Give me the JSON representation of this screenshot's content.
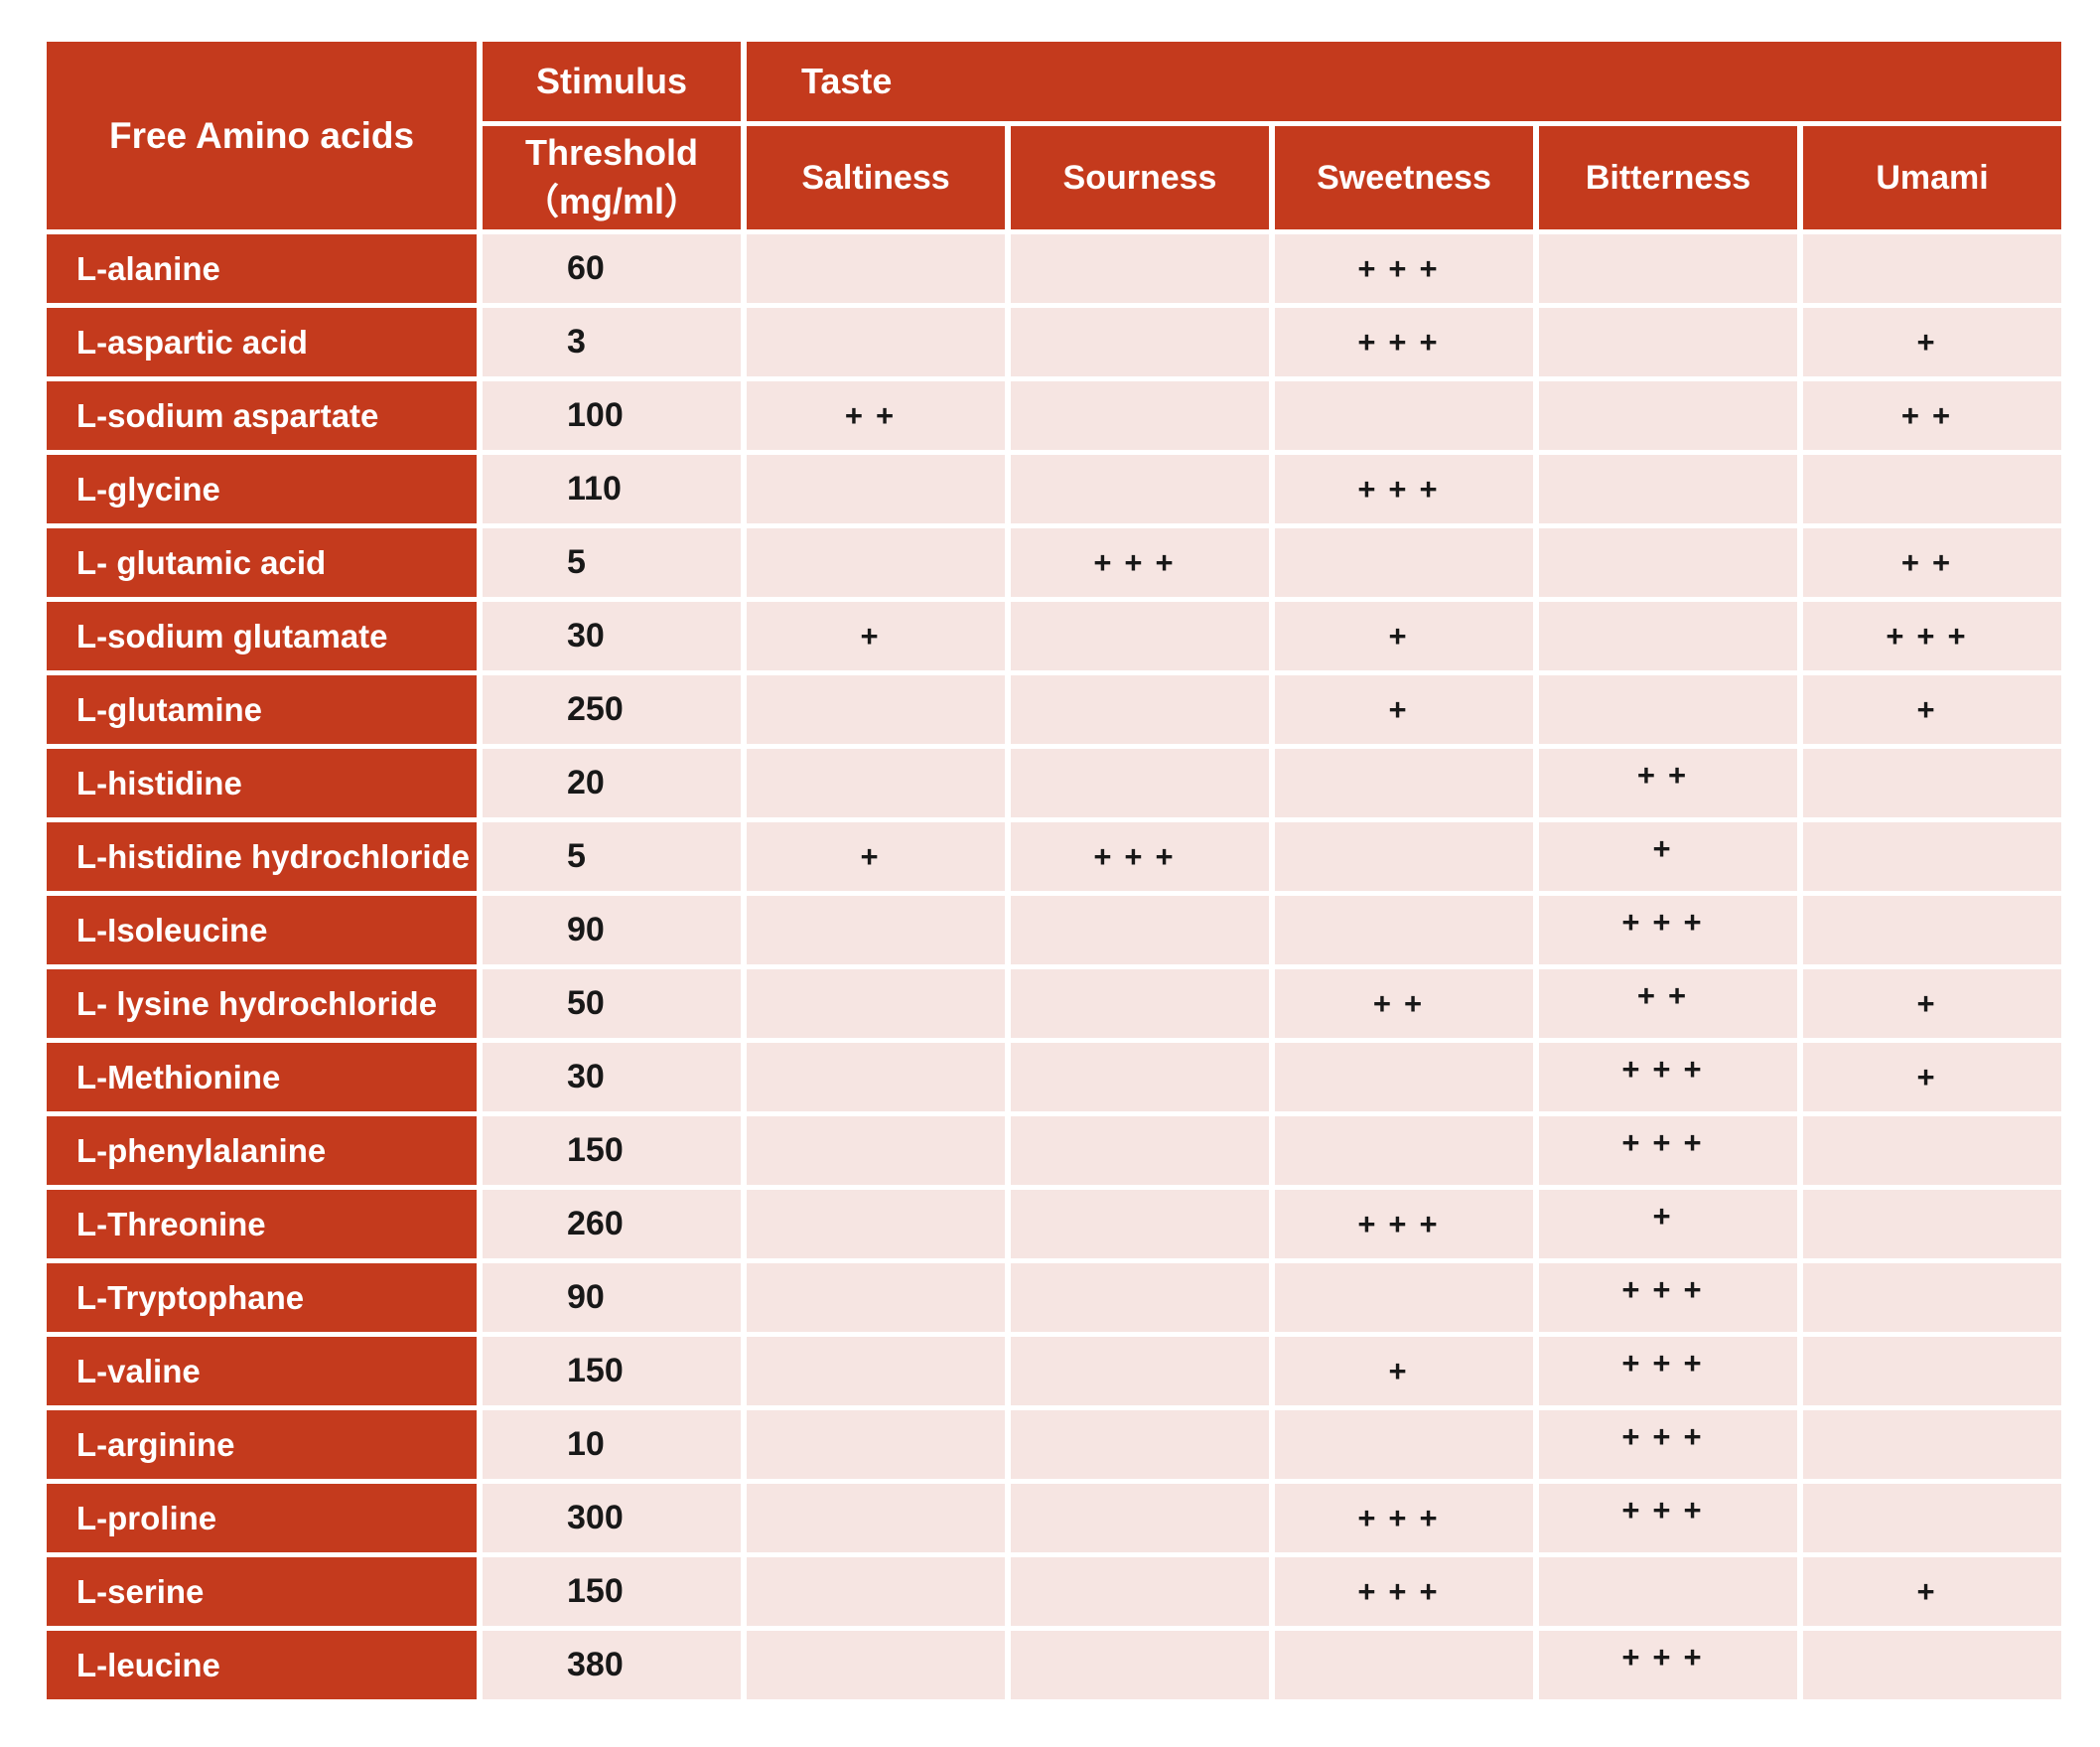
{
  "colors": {
    "header_red": "#C43A1D",
    "cell_pink": "#F6E5E2",
    "grid_white": "#FFFFFF",
    "text_dark": "#181818",
    "text_light": "#FFFFFF"
  },
  "table": {
    "header": {
      "amino_label": "Free Amino acids",
      "stimulus_label": "Stimulus",
      "threshold_line1": "Threshold",
      "threshold_line2": "（mg/ml）",
      "taste_group_label": "Taste",
      "taste_columns": [
        "Saltiness",
        "Sourness",
        "Sweetness",
        "Bitterness",
        "Umami"
      ]
    },
    "rows": [
      {
        "name": "L-alanine",
        "threshold": "60",
        "saltiness": "",
        "sourness": "",
        "sweetness": "+++",
        "bitterness": "",
        "umami": ""
      },
      {
        "name": "L-aspartic acid",
        "threshold": "3",
        "saltiness": "",
        "sourness": "",
        "sweetness": "+++",
        "bitterness": "",
        "umami": "+"
      },
      {
        "name": "L-sodium aspartate",
        "threshold": "100",
        "saltiness": "++",
        "sourness": "",
        "sweetness": "",
        "bitterness": "",
        "umami": "++"
      },
      {
        "name": "L-glycine",
        "threshold": "110",
        "saltiness": "",
        "sourness": "",
        "sweetness": "+++",
        "bitterness": "",
        "umami": ""
      },
      {
        "name": "L- glutamic acid",
        "threshold": "5",
        "saltiness": "",
        "sourness": "+++",
        "sweetness": "",
        "bitterness": "",
        "umami": "++"
      },
      {
        "name": "L-sodium glutamate",
        "threshold": "30",
        "saltiness": "+",
        "sourness": "",
        "sweetness": "+",
        "bitterness": "",
        "umami": "+++"
      },
      {
        "name": "L-glutamine",
        "threshold": "250",
        "saltiness": "",
        "sourness": "",
        "sweetness": "+",
        "bitterness": "",
        "umami": "+"
      },
      {
        "name": "L-histidine",
        "threshold": "20",
        "saltiness": "",
        "sourness": "",
        "sweetness": "",
        "bitterness": "++",
        "umami": ""
      },
      {
        "name": "L-histidine hydrochloride",
        "threshold": "5",
        "saltiness": "+",
        "sourness": "+++",
        "sweetness": "",
        "bitterness": "+",
        "umami": ""
      },
      {
        "name": "L-Isoleucine",
        "threshold": "90",
        "saltiness": "",
        "sourness": "",
        "sweetness": "",
        "bitterness": "+++",
        "umami": ""
      },
      {
        "name": "L- lysine hydrochloride",
        "threshold": "50",
        "saltiness": "",
        "sourness": "",
        "sweetness": "++",
        "bitterness": "++",
        "umami": "+"
      },
      {
        "name": "L-Methionine",
        "threshold": "30",
        "saltiness": "",
        "sourness": "",
        "sweetness": "",
        "bitterness": "+++",
        "umami": "+"
      },
      {
        "name": "L-phenylalanine",
        "threshold": "150",
        "saltiness": "",
        "sourness": "",
        "sweetness": "",
        "bitterness": "+++",
        "umami": ""
      },
      {
        "name": "L-Threonine",
        "threshold": "260",
        "saltiness": "",
        "sourness": "",
        "sweetness": "+++",
        "bitterness": "+",
        "umami": ""
      },
      {
        "name": "L-Tryptophane",
        "threshold": "90",
        "saltiness": "",
        "sourness": "",
        "sweetness": "",
        "bitterness": "+++",
        "umami": ""
      },
      {
        "name": "L-valine",
        "threshold": "150",
        "saltiness": "",
        "sourness": "",
        "sweetness": "+",
        "bitterness": "+++",
        "umami": ""
      },
      {
        "name": "L-arginine",
        "threshold": "10",
        "saltiness": "",
        "sourness": "",
        "sweetness": "",
        "bitterness": "+++",
        "umami": ""
      },
      {
        "name": "L-proline",
        "threshold": "300",
        "saltiness": "",
        "sourness": "",
        "sweetness": "+++",
        "bitterness": "+++",
        "umami": ""
      },
      {
        "name": "L-serine",
        "threshold": "150",
        "saltiness": "",
        "sourness": "",
        "sweetness": "+++",
        "bitterness": "",
        "umami": "+"
      },
      {
        "name": "L-leucine",
        "threshold": "380",
        "saltiness": "",
        "sourness": "",
        "sweetness": "",
        "bitterness": "+++",
        "umami": ""
      }
    ]
  }
}
